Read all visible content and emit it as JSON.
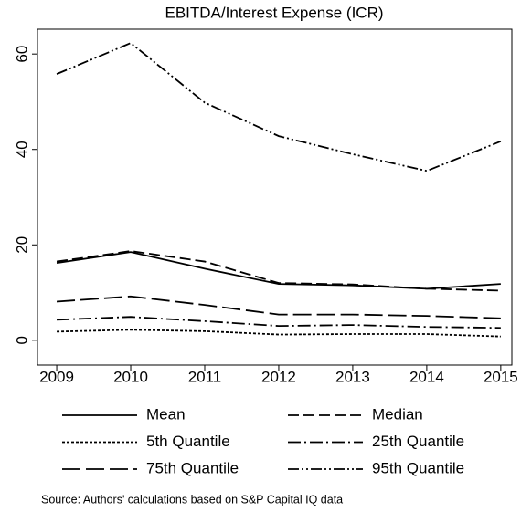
{
  "chart_data": {
    "type": "line",
    "title": "EBITDA/Interest Expense (ICR)",
    "source": "Source: Authors' calculations based on S&P Capital IQ data",
    "x": [
      2009,
      2010,
      2011,
      2012,
      2013,
      2014,
      2015
    ],
    "xlim": [
      2008.74,
      2015.15
    ],
    "xticks": [
      2009,
      2010,
      2011,
      2012,
      2013,
      2014,
      2015
    ],
    "ylim": [
      -5.2,
      65.2
    ],
    "yticks": [
      0,
      20,
      40,
      60
    ],
    "series": [
      {
        "name": "Mean",
        "color": "#000000",
        "values": [
          16.2,
          18.5,
          15.0,
          11.8,
          11.5,
          10.8,
          11.8
        ]
      },
      {
        "name": "Median",
        "color": "#000000",
        "values": [
          16.5,
          18.7,
          16.5,
          12.0,
          11.7,
          10.8,
          10.4
        ]
      },
      {
        "name": "5th Quantile",
        "color": "#000000",
        "values": [
          1.8,
          2.2,
          1.9,
          1.2,
          1.3,
          1.3,
          0.8
        ]
      },
      {
        "name": "25th Quantile",
        "color": "#000000",
        "values": [
          4.3,
          4.9,
          4.0,
          3.0,
          3.2,
          2.8,
          2.6
        ]
      },
      {
        "name": "75th Quantile",
        "color": "#000000",
        "values": [
          8.1,
          9.2,
          7.4,
          5.4,
          5.4,
          5.1,
          4.6
        ]
      },
      {
        "name": "95th Quantile",
        "color": "#000000",
        "values": [
          55.8,
          62.3,
          49.8,
          42.8,
          39.0,
          35.5,
          41.7
        ]
      }
    ]
  }
}
